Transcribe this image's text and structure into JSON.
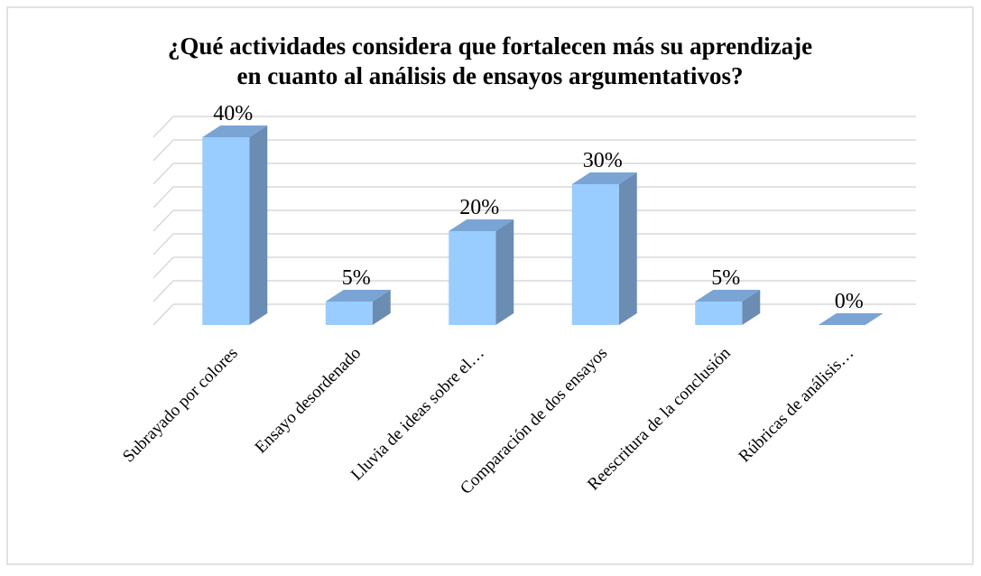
{
  "chart_data": {
    "type": "bar3d",
    "title": [
      "¿Qué actividades considera que fortalecen más su aprendizaje",
      "en cuanto al análisis de ensayos argumentativos?"
    ],
    "categories": [
      "Subrayado por colores",
      "Ensayo desordenado",
      "Lluvia de ideas sobre el…",
      "Comparación de dos ensayos",
      "Reescritura de la conclusión",
      "Rúbricas de análisis…"
    ],
    "values": [
      40,
      5,
      20,
      30,
      5,
      0
    ],
    "value_labels": [
      "40%",
      "5%",
      "20%",
      "30%",
      "5%",
      "0%"
    ],
    "color": "#99ccff",
    "ylim": [
      0,
      40
    ],
    "yticks": [
      0,
      5,
      10,
      15,
      20,
      25,
      30,
      35,
      40
    ],
    "grid": true
  }
}
